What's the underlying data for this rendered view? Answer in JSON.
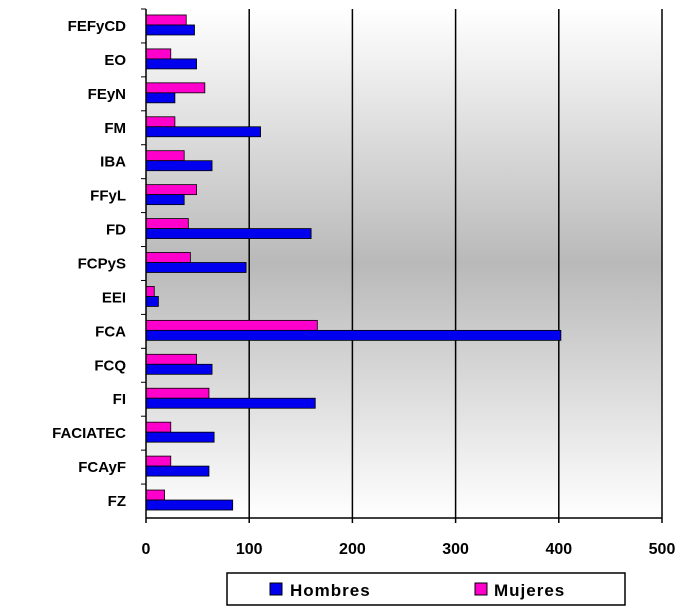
{
  "chart_data": {
    "type": "bar",
    "orientation": "horizontal",
    "title": "",
    "xlabel": "",
    "ylabel": "",
    "categories": [
      "FEFyCD",
      "EO",
      "FEyN",
      "FM",
      "IBA",
      "FFyL",
      "FD",
      "FCPyS",
      "EEI",
      "FCA",
      "FCQ",
      "FI",
      "FACIATEC",
      "FCAyF",
      "FZ"
    ],
    "series": [
      {
        "name": "Hombres",
        "color": "#0000ee",
        "values": [
          47,
          49,
          28,
          111,
          64,
          37,
          160,
          97,
          12,
          402,
          64,
          164,
          66,
          61,
          84
        ]
      },
      {
        "name": "Mujeres",
        "color": "#ff00cc",
        "values": [
          39,
          24,
          57,
          28,
          37,
          49,
          41,
          43,
          8,
          166,
          49,
          61,
          24,
          24,
          18
        ]
      }
    ],
    "xlim": [
      0,
      500
    ],
    "xticks": [
      0,
      100,
      200,
      300,
      400,
      500
    ],
    "grid": true,
    "legend_position": "bottom"
  }
}
